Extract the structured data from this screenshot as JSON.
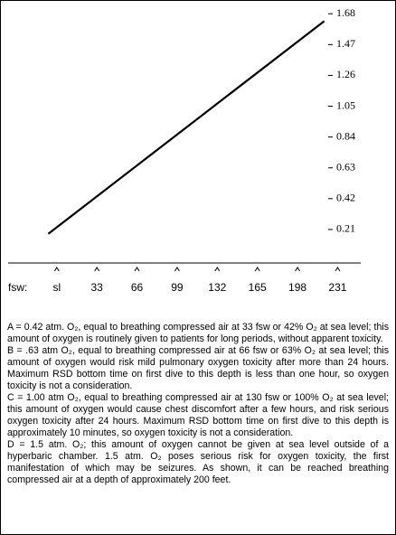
{
  "chart_data": {
    "type": "line",
    "xlabel": "fsw:",
    "xlim": [
      -40,
      250
    ],
    "xticks": [
      {
        "value": 0,
        "label": "sl"
      },
      33,
      66,
      99,
      132,
      165,
      198,
      231
    ],
    "ylim": [
      0,
      1.7
    ],
    "yticks": [
      0.21,
      0.42,
      0.63,
      0.84,
      1.05,
      1.26,
      1.47,
      1.68
    ],
    "series": [
      {
        "color": "#000000",
        "x": [
          -7,
          220
        ],
        "values": [
          0.18,
          1.63
        ]
      }
    ]
  },
  "notes": [
    "A = 0.42 atm. O₂, equal to breathing compressed air at 33 fsw or 42% O₂ at sea level; this amount of oxygen is routinely given to patients for long periods, without apparent toxicity.",
    "B = .63 atm O₂, equal to breathing compressed air at 66 fsw or 63% O₂ at sea level; this amount of oxygen would risk mild pulmonary oxygen toxicity after more than 24 hours. Maximum RSD bottom time on first dive to this depth is less than one hour, so oxygen toxicity is not a consideration.",
    "C = 1.00 atm O₂, equal to breathing compressed air at 130 fsw or 100% O₂ at sea level; this amount of oxygen would cause chest discomfort after a few hours, and risk serious oxygen toxicity after 24 hours. Maximum RSD bottom time on first dive to this depth is approximately 10 minutes, so oxygen toxicity is not a consideration.",
    "D = 1.5 atm. O₂; this amount of oxygen cannot be given at sea level outside of a hyperbaric chamber. 1.5 atm. O₂ poses serious risk for oxygen toxicity, the first manifestation of which may be seizures. As shown, it can be reached breathing compressed air at a depth of approximately 200 feet."
  ]
}
